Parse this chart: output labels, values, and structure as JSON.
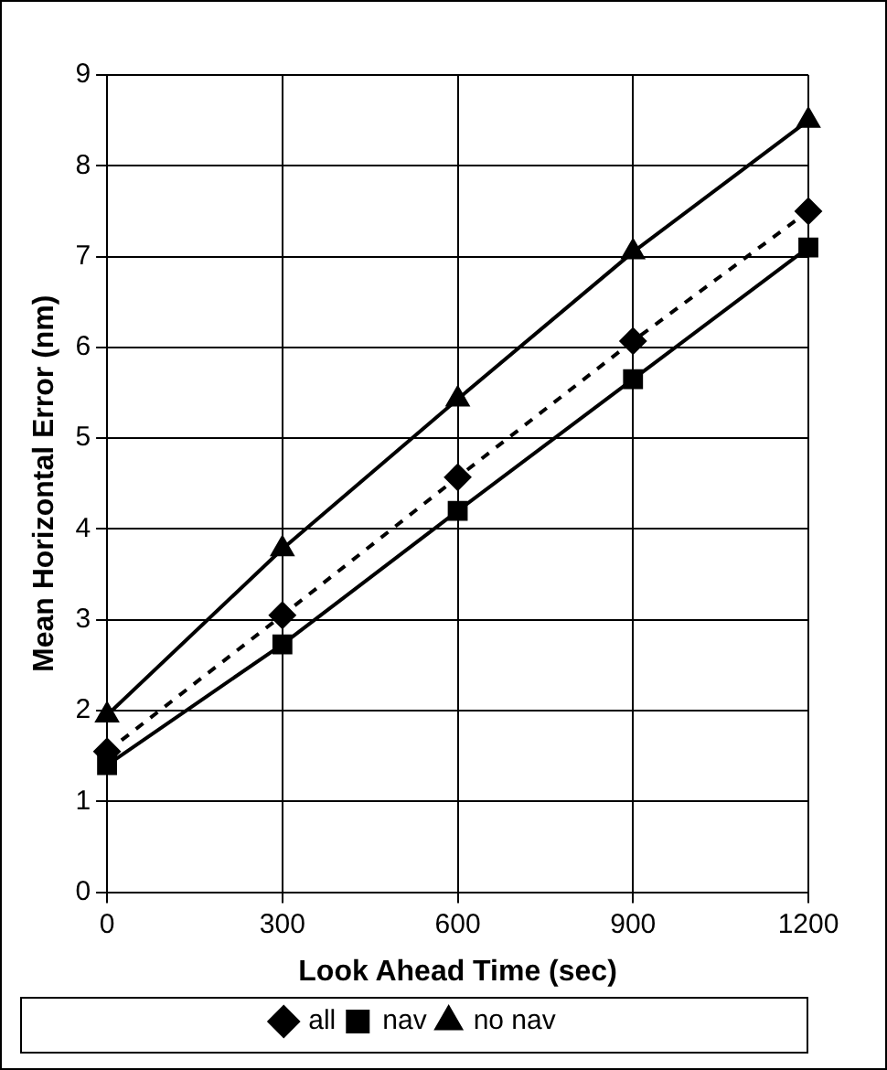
{
  "chart_data": {
    "type": "line",
    "xlabel": "Look Ahead Time (sec)",
    "ylabel": "Mean Horizontal Error (nm)",
    "x": [
      0,
      300,
      600,
      900,
      1200
    ],
    "series": [
      {
        "name": "all",
        "color": "#000000",
        "marker": "diamond",
        "line_style": "dashed",
        "values": [
          1.55,
          3.05,
          4.57,
          6.07,
          7.5
        ]
      },
      {
        "name": "nav",
        "color": "#000000",
        "marker": "square",
        "line_style": "solid",
        "values": [
          1.4,
          2.73,
          4.2,
          5.65,
          7.1
        ]
      },
      {
        "name": "no nav",
        "color": "#000000",
        "marker": "triangle",
        "line_style": "solid",
        "values": [
          1.95,
          3.78,
          5.43,
          7.05,
          8.5
        ]
      }
    ],
    "xlim": [
      0,
      1200
    ],
    "xticks": [
      0,
      300,
      600,
      900,
      1200
    ],
    "ylim": [
      0,
      9
    ],
    "yticks": [
      0,
      1,
      2,
      3,
      4,
      5,
      6,
      7,
      8,
      9
    ],
    "grid": true,
    "legend": "bottom"
  }
}
